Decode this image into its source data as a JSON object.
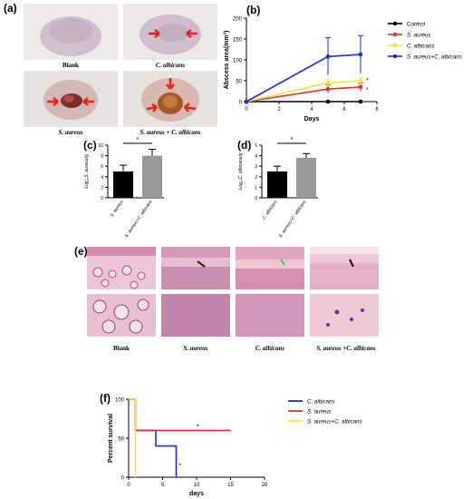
{
  "panels": {
    "a": "(a)",
    "b": "(b)",
    "c": "(c)",
    "d": "(d)",
    "e": "(e)",
    "f": "(f)"
  },
  "panel_a": {
    "captions": [
      "Blank",
      "C. albicans",
      "S. aureus",
      "S. aureus + C. albicans"
    ]
  },
  "panel_e": {
    "captions": [
      "Blank",
      "S. aureus",
      "C. albicans",
      "S. aureus +C. albicans"
    ]
  },
  "colors": {
    "control": "#000000",
    "s_aureus": "#e8302a",
    "c_albicans": "#f2e634",
    "combo": "#1c2fd6",
    "arrow": "#e8231b",
    "bar_grey": "#999999"
  },
  "chart_data": [
    {
      "id": "b",
      "type": "line",
      "ylabel": "Abscess area(mm²)",
      "xlabel": "Days",
      "xlim": [
        0,
        8
      ],
      "ylim": [
        0,
        200
      ],
      "xticks": [
        "0",
        "2",
        "4",
        "6",
        "8"
      ],
      "yticks": [
        "0",
        "50",
        "100",
        "150",
        "200"
      ],
      "x": [
        0,
        5,
        7
      ],
      "series": [
        {
          "name": "Control",
          "color": "#000000",
          "values": [
            0,
            0,
            0
          ],
          "err": [
            0,
            0,
            0
          ]
        },
        {
          "name": "S. aureus",
          "color": "#e8302a",
          "values": [
            0,
            30,
            35
          ],
          "err": [
            0,
            10,
            10
          ]
        },
        {
          "name": "C. albicans",
          "color": "#f2e634",
          "values": [
            0,
            45,
            50
          ],
          "err": [
            0,
            8,
            8
          ]
        },
        {
          "name": "S. aureus+C. albicans",
          "color": "#1c2fd6",
          "values": [
            0,
            108,
            113
          ],
          "err": [
            0,
            45,
            45
          ]
        }
      ],
      "annotations": [
        "*",
        "*"
      ],
      "legend": "right"
    },
    {
      "id": "c",
      "type": "bar",
      "ylabel": "Log₁₀S. aureus/g",
      "ylim": [
        0,
        10
      ],
      "yticks": [
        "0",
        "2",
        "4",
        "6",
        "8",
        "10"
      ],
      "categories": [
        "S. aureus",
        "S. aureus+C. albicans"
      ],
      "values": [
        5,
        8
      ],
      "err": [
        1.2,
        1.2
      ],
      "colors": [
        "#000000",
        "#999999"
      ],
      "sig": "*"
    },
    {
      "id": "d",
      "type": "bar",
      "ylabel": "Log₁₀C. albicans/g",
      "ylim": [
        0,
        5
      ],
      "yticks": [
        "0",
        "1",
        "2",
        "3",
        "4",
        "5"
      ],
      "categories": [
        "C. albicans",
        "S. aureus+C. albicans"
      ],
      "values": [
        2.5,
        3.8
      ],
      "err": [
        0.5,
        0.4
      ],
      "colors": [
        "#000000",
        "#999999"
      ],
      "sig": "*"
    },
    {
      "id": "f",
      "type": "line",
      "ylabel": "Percent survival",
      "xlabel": "days",
      "xlim": [
        0,
        20
      ],
      "ylim": [
        0,
        100
      ],
      "xticks": [
        "0",
        "5",
        "10",
        "15",
        "20"
      ],
      "yticks": [
        "0",
        "50",
        "100"
      ],
      "series": [
        {
          "name": "C. albicans",
          "color": "#1c2fd6",
          "steps": [
            [
              0,
              100
            ],
            [
              1,
              100
            ],
            [
              1,
              60
            ],
            [
              4,
              60
            ],
            [
              4,
              40
            ],
            [
              7,
              40
            ],
            [
              7,
              0
            ]
          ]
        },
        {
          "name": "S. aureus",
          "color": "#e8302a",
          "steps": [
            [
              0,
              100
            ],
            [
              1,
              100
            ],
            [
              1,
              60
            ],
            [
              15,
              60
            ]
          ]
        },
        {
          "name": "S. aureus+C. albicans",
          "color": "#f2e634",
          "steps": [
            [
              0,
              100
            ],
            [
              1,
              100
            ],
            [
              1,
              0
            ]
          ]
        }
      ],
      "annotations": [
        "*",
        "*"
      ],
      "legend": "right"
    }
  ]
}
